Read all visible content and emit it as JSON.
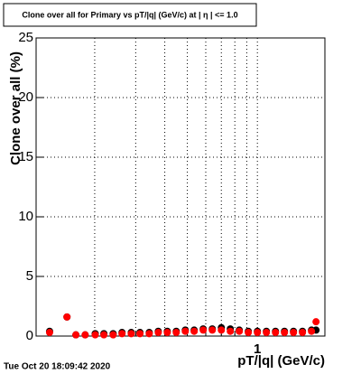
{
  "chart_data": {
    "type": "scatter",
    "title": "Clone  over all for Primary vs pT/|q| (GeV/c) at |  η | <= 1.0",
    "x_label": "pT/|q| (GeV/c)",
    "y_label": "Clone  over all (%)",
    "footer": "Tue Oct 20 18:09:42 2020",
    "log_x": true,
    "grid": true,
    "xlim": [
      0.112,
      1.95
    ],
    "xticks": [
      1
    ],
    "xminor_ticks": [
      0.2,
      0.3,
      0.4,
      0.5,
      0.6,
      0.7,
      0.8,
      0.9
    ],
    "ylim": [
      0,
      25
    ],
    "yticks": [
      0,
      5,
      10,
      15,
      20,
      25
    ],
    "x": [
      0.128,
      0.152,
      0.166,
      0.182,
      0.201,
      0.219,
      0.24,
      0.262,
      0.287,
      0.313,
      0.343,
      0.375,
      0.41,
      0.448,
      0.49,
      0.535,
      0.585,
      0.64,
      0.7,
      0.765,
      0.836,
      0.914,
      1.0,
      1.093,
      1.196,
      1.307,
      1.429,
      1.562,
      1.708,
      1.786
    ],
    "series": [
      {
        "color": "#000000",
        "values": [
          0.4,
          1.6,
          0.1,
          0.1,
          0.2,
          0.2,
          0.2,
          0.3,
          0.3,
          0.3,
          0.3,
          0.4,
          0.4,
          0.4,
          0.5,
          0.5,
          0.6,
          0.6,
          0.7,
          0.6,
          0.5,
          0.4,
          0.4,
          0.4,
          0.4,
          0.4,
          0.4,
          0.4,
          0.5,
          0.5
        ]
      },
      {
        "color": "#ff0000",
        "values": [
          0.3,
          1.6,
          0.1,
          0.1,
          0.1,
          0.1,
          0.1,
          0.2,
          0.2,
          0.2,
          0.2,
          0.3,
          0.3,
          0.3,
          0.4,
          0.4,
          0.5,
          0.5,
          0.5,
          0.4,
          0.4,
          0.3,
          0.3,
          0.3,
          0.3,
          0.3,
          0.3,
          0.3,
          0.4,
          1.2
        ]
      }
    ]
  }
}
